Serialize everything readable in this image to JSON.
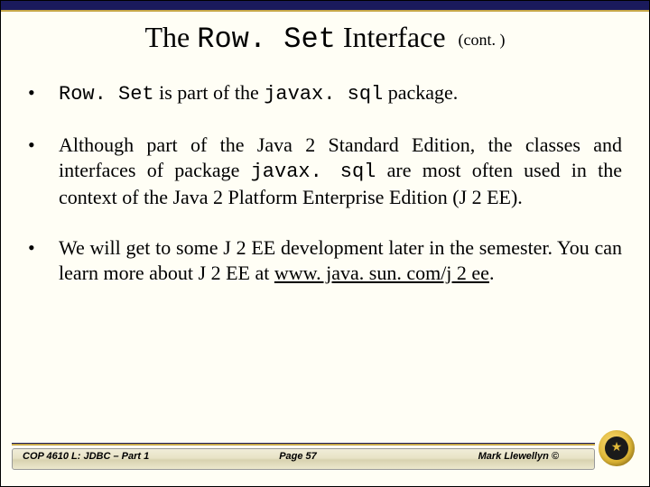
{
  "title": {
    "pre": "The ",
    "mono": "Row. Set",
    "post": " Interface",
    "cont": "(cont. )"
  },
  "bullets": {
    "b1": {
      "mono1": "Row. Set",
      "t1": " is part of the ",
      "mono2": "javax. sql",
      "t2": " package."
    },
    "b2": {
      "t1": "Although part of the Java 2 Standard Edition, the classes and interfaces of package ",
      "mono1": "javax. sql",
      "t2": "  are most often used in the context of the Java 2 Platform Enterprise Edition (J 2 EE)."
    },
    "b3": {
      "t1": "We will get to some J 2 EE development later in the semester.   You can learn more about J 2 EE at ",
      "link": "www. java. sun. com/j 2 ee",
      "t2": "."
    }
  },
  "footer": {
    "left": "COP 4610 L: JDBC – Part 1",
    "mid": "Page 57",
    "right": "Mark Llewellyn ©"
  },
  "colors": {
    "topbar": "#1a1a5c",
    "gold": "#c7a84a",
    "bg": "#fffef5"
  }
}
